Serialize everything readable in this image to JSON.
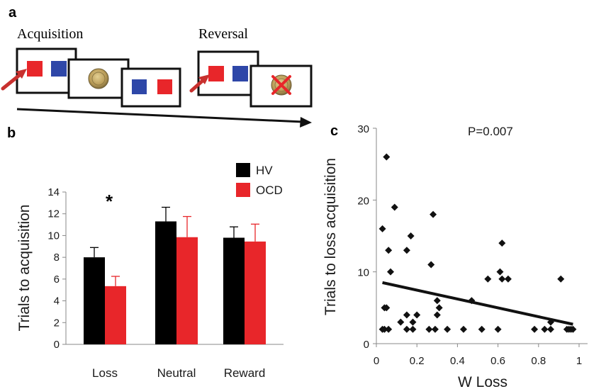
{
  "panel_a": {
    "letter": "a",
    "acquisition_label": "Acquisition",
    "reversal_label": "Reversal",
    "colors": {
      "red": "#e8262a",
      "blue": "#2e47a8",
      "coin": "#b89a55",
      "cross": "#e8262a",
      "arrow": "#c8302e"
    },
    "icons": [
      "arrow-icon",
      "coin-icon",
      "cross-icon"
    ]
  },
  "panel_b": {
    "letter": "b",
    "significance_marker": "*"
  },
  "panel_c": {
    "letter": "c",
    "p_value_text": "P=0.007"
  },
  "chart_data": [
    {
      "type": "bar",
      "categories": [
        "Loss",
        "Neutral",
        "Reward"
      ],
      "series": [
        {
          "name": "HV",
          "color": "#000000",
          "values": [
            8.0,
            11.3,
            9.8
          ],
          "errors": [
            0.9,
            1.3,
            1.0
          ]
        },
        {
          "name": "OCD",
          "color": "#e8262a",
          "values": [
            5.35,
            9.85,
            9.45
          ],
          "errors": [
            0.9,
            1.9,
            1.6
          ]
        }
      ],
      "ylabel": "Trials to acquisition",
      "ylim": [
        0,
        14
      ],
      "yticks": [
        0,
        2,
        4,
        6,
        8,
        10,
        12,
        14
      ],
      "legend_position": "top-right",
      "annotations": [
        {
          "text": "*",
          "category": "Loss"
        }
      ]
    },
    {
      "type": "scatter",
      "xlabel": "W Loss",
      "ylabel": "Trials to  loss acquisition",
      "xlim": [
        0,
        1
      ],
      "ylim": [
        0,
        30
      ],
      "xticks": [
        "0",
        "0.2",
        "0.4",
        "0.6",
        "0.8",
        "1"
      ],
      "yticks": [
        "0",
        "10",
        "20",
        "30"
      ],
      "points": [
        [
          0.03,
          2
        ],
        [
          0.03,
          16
        ],
        [
          0.04,
          2
        ],
        [
          0.04,
          5
        ],
        [
          0.05,
          5
        ],
        [
          0.05,
          26
        ],
        [
          0.06,
          2
        ],
        [
          0.06,
          13
        ],
        [
          0.07,
          10
        ],
        [
          0.09,
          19
        ],
        [
          0.12,
          3
        ],
        [
          0.15,
          2
        ],
        [
          0.15,
          4
        ],
        [
          0.15,
          13
        ],
        [
          0.17,
          15
        ],
        [
          0.18,
          2
        ],
        [
          0.18,
          3
        ],
        [
          0.2,
          4
        ],
        [
          0.26,
          2
        ],
        [
          0.27,
          11
        ],
        [
          0.28,
          18
        ],
        [
          0.29,
          2
        ],
        [
          0.3,
          4
        ],
        [
          0.3,
          6
        ],
        [
          0.31,
          5
        ],
        [
          0.35,
          2
        ],
        [
          0.43,
          2
        ],
        [
          0.47,
          6
        ],
        [
          0.52,
          2
        ],
        [
          0.55,
          9
        ],
        [
          0.6,
          2
        ],
        [
          0.61,
          10
        ],
        [
          0.62,
          14
        ],
        [
          0.62,
          9
        ],
        [
          0.65,
          9
        ],
        [
          0.78,
          2
        ],
        [
          0.83,
          2
        ],
        [
          0.86,
          3
        ],
        [
          0.86,
          2
        ],
        [
          0.91,
          9
        ],
        [
          0.94,
          2
        ],
        [
          0.95,
          2
        ],
        [
          0.96,
          2
        ],
        [
          0.97,
          2
        ]
      ],
      "regression": {
        "from": [
          0.03,
          8.5
        ],
        "to": [
          0.97,
          2.7
        ]
      },
      "annotations": [
        {
          "text": "P=0.007"
        }
      ]
    }
  ]
}
